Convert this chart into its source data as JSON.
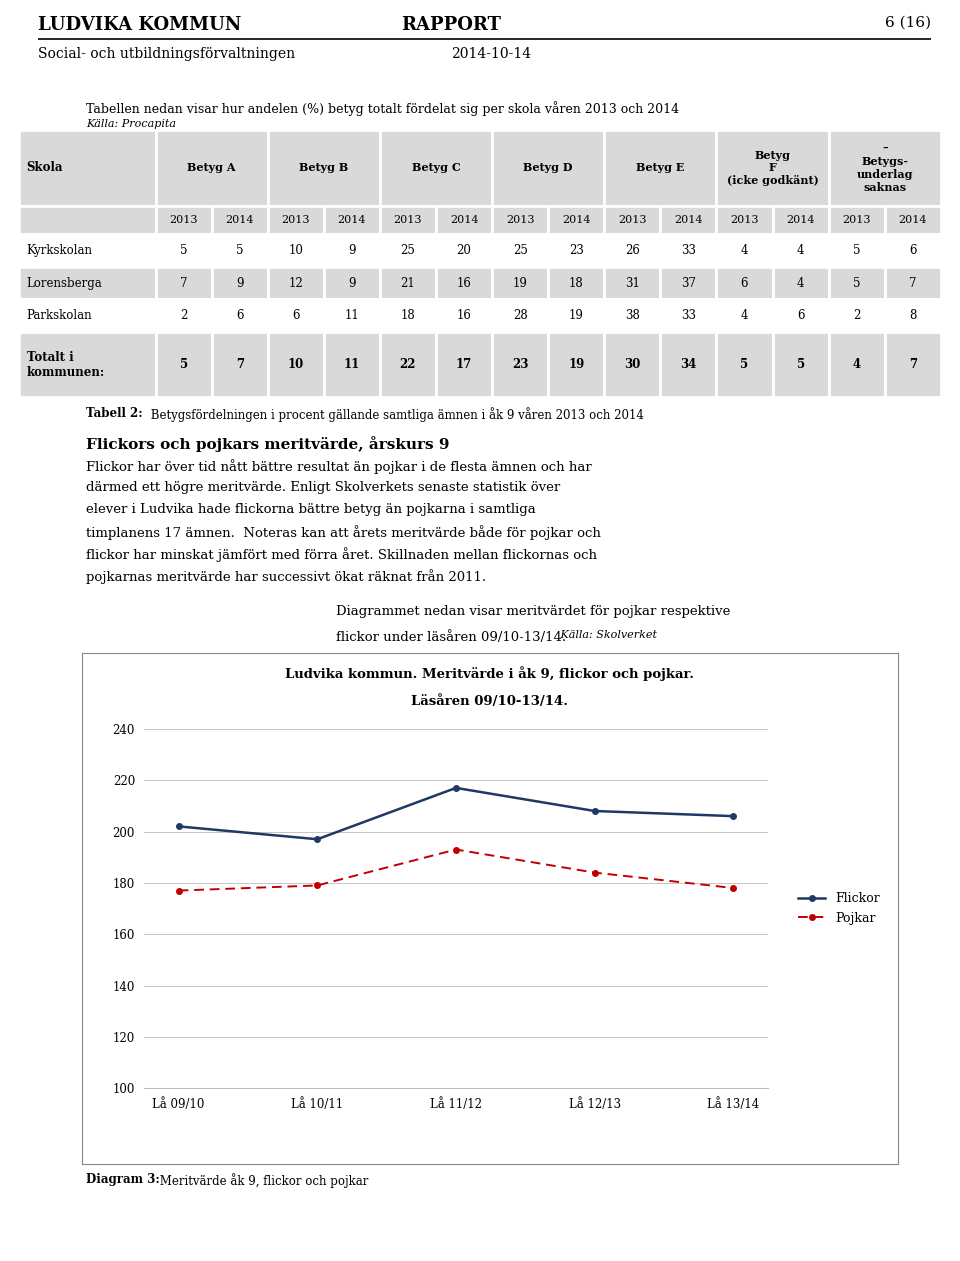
{
  "page_header_left": "LUDVIKA KOMMUN",
  "page_header_center": "RAPPORT",
  "page_header_right": "6 (16)",
  "page_subheader_left": "Social- och utbildningsförvaltningen",
  "page_subheader_right": "2014-10-14",
  "table_intro": "Tabellen nedan visar hur andelen (%) betyg totalt fördelat sig per skola våren 2013 och 2014",
  "table_source": "Källa: Procapita",
  "col_headers": [
    "Skola",
    "Betyg A",
    "Betyg B",
    "Betyg C",
    "Betyg D",
    "Betyg E",
    "Betyg\nF\n(icke godkänt)",
    "–\nBetygs-\nunderlag\nsaknas"
  ],
  "rows": [
    [
      "Kyrkskolan",
      5,
      5,
      10,
      9,
      25,
      20,
      25,
      23,
      26,
      33,
      4,
      4,
      5,
      6
    ],
    [
      "Lorensberga",
      7,
      9,
      12,
      9,
      21,
      16,
      19,
      18,
      31,
      37,
      6,
      4,
      5,
      7
    ],
    [
      "Parkskolan",
      2,
      6,
      6,
      11,
      18,
      16,
      28,
      19,
      38,
      33,
      4,
      6,
      2,
      8
    ]
  ],
  "total_row": [
    "Totalt i\nkommunen:",
    5,
    7,
    10,
    11,
    22,
    17,
    23,
    19,
    30,
    34,
    5,
    5,
    4,
    7
  ],
  "tabell2_text_bold": "Tabell 2:",
  "tabell2_text_rest": " Betygsfördelningen i procent gällande samtliga ämnen i åk 9 våren 2013 och 2014",
  "section_title": "Flickors och pojkars meritvärde, årskurs 9",
  "section_body_lines": [
    "Flickor har över tid nått bättre resultat än pojkar i de flesta ämnen och har",
    "därmed ett högre meritvärde. Enligt Skolverkets senaste statistik över",
    "elever i Ludvika hade flickorna bättre betyg än pojkarna i samtliga",
    "timplanens 17 ämnen.  Noteras kan att årets meritvärde både för pojkar och",
    "flickor har minskat jämfört med förra året. Skillnaden mellan flickornas och",
    "pojkarnas meritvärde har successivt ökat räknat från 2011."
  ],
  "diagram_intro_line1": "Diagrammet nedan visar meritvärdet för pojkar respektive",
  "diagram_intro_line2": "flickor under läsåren 09/10-13/14.",
  "diagram_intro_source": " Källa: Skolverket",
  "chart_title_line1": "Ludvika kommun. Meritvärde i åk 9, flickor och pojkar.",
  "chart_title_line2": "Läsåren 09/10-13/14.",
  "x_labels": [
    "Lå 09/10",
    "Lå 10/11",
    "Lå 11/12",
    "Lå 12/13",
    "Lå 13/14"
  ],
  "flickor_values": [
    202,
    197,
    217,
    208,
    206
  ],
  "pojkar_values": [
    177,
    179,
    193,
    184,
    178
  ],
  "y_min": 100,
  "y_max": 240,
  "y_ticks": [
    100,
    120,
    140,
    160,
    180,
    200,
    220,
    240
  ],
  "flickor_color": "#1F3864",
  "pojkar_color": "#C00000",
  "diagram_caption_bold": "Diagram 3:",
  "diagram_caption_rest": " Meritvärde åk 9, flickor och pojkar",
  "header_bg": "#D9D9D9",
  "white": "#FFFFFF"
}
